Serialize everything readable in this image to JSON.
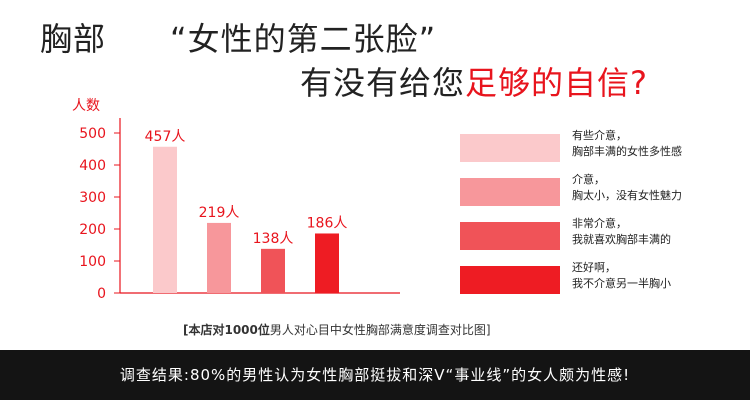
{
  "headline": {
    "line1_left": "胸部",
    "line1_quote": "“女性的第二张脸”",
    "line2_plain": "有没有给您",
    "line2_accent": "足够的自信?"
  },
  "chart_data": {
    "type": "bar",
    "ylabel": "人数",
    "ylim": [
      0,
      500
    ],
    "yticks": [
      "0",
      "100",
      "200",
      "300",
      "400",
      "500"
    ],
    "categories": [
      "有些介意，胸部丰满的女性多性感",
      "介意，胸太小，没有女性魅力",
      "非常介意，我就喜欢胸部丰满的",
      "还好啊，我不介意另一半胸小"
    ],
    "values": [
      457,
      219,
      138,
      186
    ],
    "data_labels": [
      "457人",
      "219人",
      "138人",
      "186人"
    ],
    "colors": [
      "#fbc9cb",
      "#f7979b",
      "#f05358",
      "#ee1c23"
    ]
  },
  "legend": [
    {
      "line1": "有些介意，",
      "line2": "胸部丰满的女性多性感"
    },
    {
      "line1": "介意，",
      "line2": "胸太小，没有女性魅力"
    },
    {
      "line1": "非常介意，",
      "line2": "我就喜欢胸部丰满的"
    },
    {
      "line1": "还好啊，",
      "line2": "我不介意另一半胸小"
    }
  ],
  "caption": {
    "bold": "[本店对1000位",
    "rest": "男人对心目中女性胸部满意度调查对比图]"
  },
  "footer": "调查结果:80%的男性认为女性胸部挺拔和深V“事业线”的女人颇为性感!",
  "colors": {
    "accent": "#e8141d",
    "footer_bg": "#141414"
  }
}
